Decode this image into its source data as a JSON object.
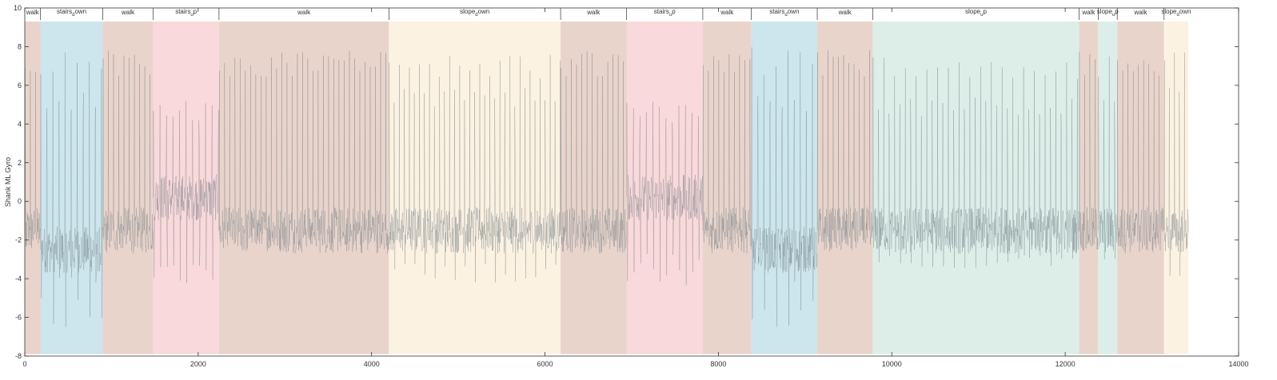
{
  "chart_data": {
    "type": "line",
    "title": "",
    "xlabel": "",
    "ylabel": "Shank ML Gyro",
    "xlim": [
      0,
      14000
    ],
    "ylim": [
      -8,
      10
    ],
    "xticks": [
      0,
      2000,
      4000,
      6000,
      8000,
      10000,
      12000,
      14000
    ],
    "yticks": [
      -8,
      -6,
      -4,
      -2,
      0,
      2,
      4,
      6,
      8,
      10
    ],
    "grid": false,
    "signal_end": 13420,
    "colors": {
      "walk": "#e9d4cb",
      "stairs_down": "#cde5ec",
      "stairs_up": "#f9d9db",
      "slope_down": "#fcf2e2",
      "slope_up": "#ddeee9",
      "line": "#6f7b84"
    },
    "segments": [
      {
        "label": "walk",
        "activity": "walk",
        "start": 0,
        "end": 180
      },
      {
        "label": "stairs_down",
        "activity": "stairs_down",
        "start": 180,
        "end": 900
      },
      {
        "label": "walk",
        "activity": "walk",
        "start": 900,
        "end": 1480
      },
      {
        "label": "stairs_up",
        "activity": "stairs_up",
        "start": 1480,
        "end": 2240
      },
      {
        "label": "walk",
        "activity": "walk",
        "start": 2240,
        "end": 4200
      },
      {
        "label": "slope_down",
        "activity": "slope_down",
        "start": 4200,
        "end": 6180
      },
      {
        "label": "walk",
        "activity": "walk",
        "start": 6180,
        "end": 6940
      },
      {
        "label": "stairs_up",
        "activity": "stairs_up",
        "start": 6940,
        "end": 7820
      },
      {
        "label": "walk",
        "activity": "walk",
        "start": 7820,
        "end": 8380
      },
      {
        "label": "stairs_down",
        "activity": "stairs_down",
        "start": 8380,
        "end": 9140
      },
      {
        "label": "walk",
        "activity": "walk",
        "start": 9140,
        "end": 9780
      },
      {
        "label": "slope_up",
        "activity": "slope_up",
        "start": 9780,
        "end": 12160
      },
      {
        "label": "walk",
        "activity": "walk",
        "start": 12160,
        "end": 12380
      },
      {
        "label": "slope_up",
        "activity": "slope_up",
        "start": 12380,
        "end": 12600
      },
      {
        "label": "walk",
        "activity": "walk",
        "start": 12600,
        "end": 13140
      },
      {
        "label": "slope_down",
        "activity": "slope_down",
        "start": 13140,
        "end": 13420
      }
    ],
    "signal_profile": [
      {
        "activity": "walk",
        "period": 60,
        "peak_max": 8.0,
        "trough_min": -4.0,
        "baseline": -1.5
      },
      {
        "activity": "stairs_down",
        "period": 70,
        "peak_max": 8.0,
        "trough_min": -6.5,
        "baseline": -2.5
      },
      {
        "activity": "stairs_up",
        "period": 75,
        "peak_max": 5.5,
        "trough_min": -4.5,
        "baseline": 0.2
      },
      {
        "activity": "slope_down",
        "period": 58,
        "peak_max": 8.0,
        "trough_min": -4.2,
        "baseline": -1.5
      },
      {
        "activity": "slope_up",
        "period": 62,
        "peak_max": 7.7,
        "trough_min": -3.8,
        "baseline": -1.5
      }
    ]
  }
}
